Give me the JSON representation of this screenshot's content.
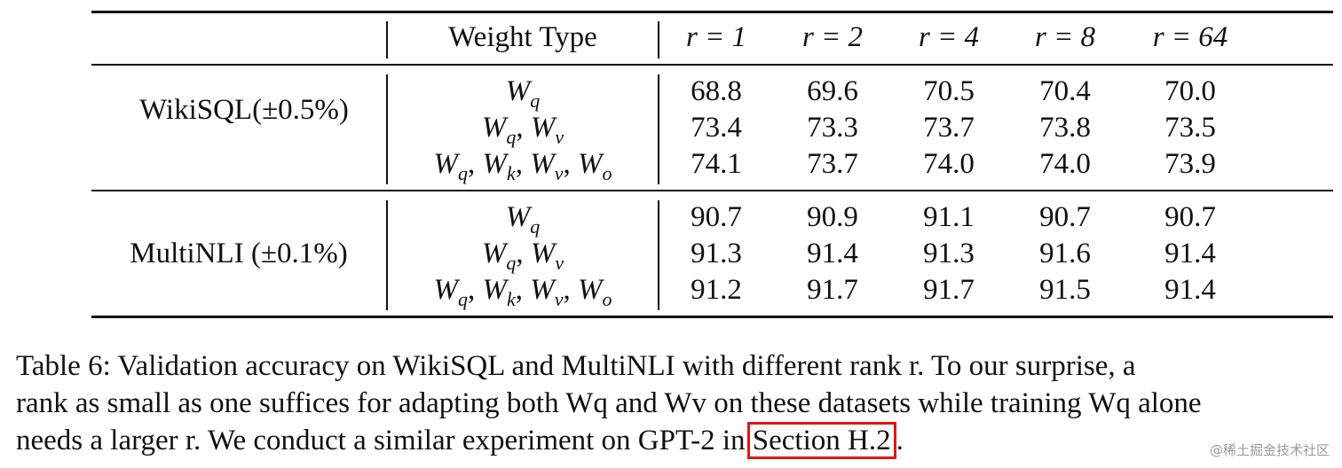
{
  "table": {
    "header": {
      "weight_type": "Weight Type",
      "ranks": [
        "r = 1",
        "r = 2",
        "r = 4",
        "r = 8",
        "r = 64"
      ]
    },
    "groups": [
      {
        "dataset": "WikiSQL(±0.5%)",
        "rows": [
          {
            "weights": [
              [
                "W",
                "q"
              ]
            ],
            "values": [
              "68.8",
              "69.6",
              "70.5",
              "70.4",
              "70.0"
            ]
          },
          {
            "weights": [
              [
                "W",
                "q"
              ],
              [
                "W",
                "v"
              ]
            ],
            "values": [
              "73.4",
              "73.3",
              "73.7",
              "73.8",
              "73.5"
            ]
          },
          {
            "weights": [
              [
                "W",
                "q"
              ],
              [
                "W",
                "k"
              ],
              [
                "W",
                "v"
              ],
              [
                "W",
                "o"
              ]
            ],
            "values": [
              "74.1",
              "73.7",
              "74.0",
              "74.0",
              "73.9"
            ]
          }
        ]
      },
      {
        "dataset": "MultiNLI (±0.1%)",
        "rows": [
          {
            "weights": [
              [
                "W",
                "q"
              ]
            ],
            "values": [
              "90.7",
              "90.9",
              "91.1",
              "90.7",
              "90.7"
            ]
          },
          {
            "weights": [
              [
                "W",
                "q"
              ],
              [
                "W",
                "v"
              ]
            ],
            "values": [
              "91.3",
              "91.4",
              "91.3",
              "91.6",
              "91.4"
            ]
          },
          {
            "weights": [
              [
                "W",
                "q"
              ],
              [
                "W",
                "k"
              ],
              [
                "W",
                "v"
              ],
              [
                "W",
                "o"
              ]
            ],
            "values": [
              "91.2",
              "91.7",
              "91.7",
              "91.5",
              "91.4"
            ]
          }
        ]
      }
    ]
  },
  "caption": {
    "line1": "Table 6: Validation accuracy on WikiSQL and MultiNLI with different rank r. To our surprise, a",
    "line2": "rank as small as one suffices for adapting both Wq and Wv on these datasets while training Wq alone",
    "line3_before": "needs a larger r. We conduct a similar experiment on GPT-2 in ",
    "line3_link": "Section H.2",
    "line3_after": "."
  },
  "watermark": "@稀土掘金技术社区",
  "colors": {
    "highlight_box": "#e01515",
    "text": "#111111"
  }
}
